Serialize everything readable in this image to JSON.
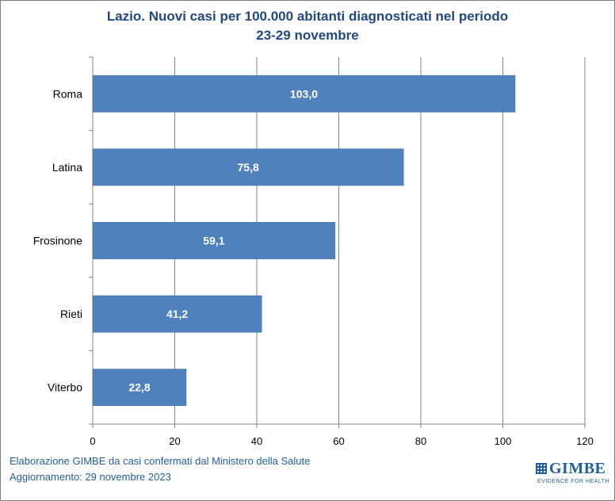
{
  "chart_data": {
    "type": "bar",
    "orientation": "horizontal",
    "title": "Lazio. Nuovi casi per 100.000 abitanti diagnosticati nel periodo",
    "subtitle": "23-29 novembre",
    "categories": [
      "Roma",
      "Latina",
      "Frosinone",
      "Rieti",
      "Viterbo"
    ],
    "values": [
      103.0,
      75.8,
      59.1,
      41.2,
      22.8
    ],
    "data_labels": [
      "103,0",
      "75,8",
      "59,1",
      "41,2",
      "22,8"
    ],
    "xlim": [
      0,
      120
    ],
    "x_ticks": [
      0,
      20,
      40,
      60,
      80,
      100,
      120
    ],
    "grid": "vertical",
    "bar_color": "#4f81bd",
    "label_color": "#ffffff",
    "title_color": "#1f497d"
  },
  "footer": {
    "line1": "Elaborazione GIMBE da casi confermati dal Ministero della Salute",
    "line2": "Aggiornamento: 29 novembre 2023"
  },
  "logo": {
    "word": "GIMBE",
    "tagline": "EVIDENCE FOR HEALTH",
    "icon": "gimbe-grid-icon"
  }
}
